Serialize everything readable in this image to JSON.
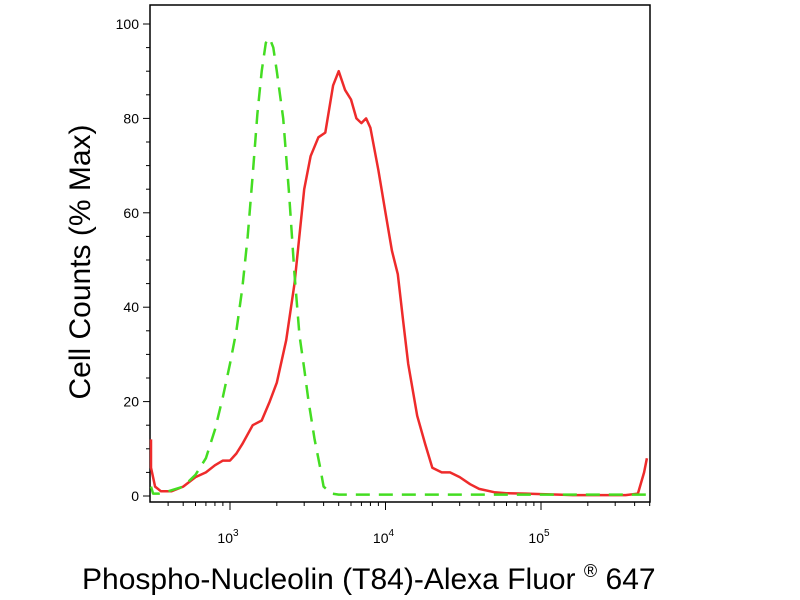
{
  "chart_data": {
    "type": "line",
    "title": "",
    "xlabel": "Phospho-Nucleolin (T84)-Alexa Fluor",
    "xlabel_superscript": "®",
    "xlabel_suffix": " 647",
    "ylabel": "Cell Counts (% Max)",
    "x_scale": "log",
    "xlim": [
      200,
      500000
    ],
    "ylim": [
      0,
      100
    ],
    "x_ticks": [
      {
        "base": "10",
        "exp": "3",
        "value": 1000
      },
      {
        "base": "10",
        "exp": "4",
        "value": 10000
      },
      {
        "base": "10",
        "exp": "5",
        "value": 100000
      }
    ],
    "y_ticks": [
      {
        "label": "0",
        "value": 0
      },
      {
        "label": "20",
        "value": 20
      },
      {
        "label": "40",
        "value": 40
      },
      {
        "label": "60",
        "value": 60
      },
      {
        "label": "80",
        "value": 80
      },
      {
        "label": "100",
        "value": 100
      }
    ],
    "grid": false,
    "series": [
      {
        "color": "#ee2b2b",
        "dash": "solid",
        "x": [
          300,
          310,
          330,
          360,
          420,
          500,
          600,
          700,
          800,
          900,
          1000,
          1100,
          1200,
          1400,
          1600,
          1800,
          2000,
          2300,
          2600,
          3000,
          3300,
          3700,
          4100,
          4600,
          5000,
          5500,
          6000,
          6500,
          7000,
          7500,
          8000,
          9000,
          10000,
          11000,
          12000,
          13000,
          14000,
          16000,
          18000,
          20000,
          23000,
          26000,
          30000,
          35000,
          40000,
          50000,
          60000,
          80000,
          100000,
          130000,
          160000,
          200000,
          280000,
          350000,
          420000,
          460000,
          480000
        ],
        "y": [
          12,
          6,
          2,
          1,
          1,
          2,
          4,
          5,
          6.5,
          7.5,
          7.5,
          9,
          11,
          15,
          16,
          20,
          24,
          33,
          45,
          65,
          72,
          76,
          77,
          87,
          90,
          86,
          84,
          80,
          79,
          80,
          78,
          69,
          60,
          52,
          47,
          37,
          28,
          17,
          11,
          6,
          5,
          5,
          4,
          2.5,
          1.5,
          0.8,
          0.6,
          0.5,
          0.4,
          0.3,
          0.2,
          0.2,
          0.2,
          0.2,
          0.5,
          5,
          8
        ]
      },
      {
        "color": "#44dd22",
        "dash": "dashed",
        "x": [
          300,
          320,
          350,
          400,
          500,
          600,
          700,
          800,
          900,
          1000,
          1100,
          1200,
          1300,
          1400,
          1500,
          1600,
          1700,
          1800,
          1900,
          2000,
          2200,
          2400,
          2600,
          2800,
          3000,
          3200,
          3500,
          3800,
          4000,
          4500,
          5000,
          6000,
          8000,
          10000,
          20000,
          40000,
          100000,
          200000,
          400000,
          480000
        ],
        "y": [
          2,
          0.5,
          0.5,
          1,
          2,
          4.5,
          8,
          14,
          21,
          28,
          35,
          44,
          55,
          68,
          81,
          90,
          96,
          97,
          95,
          90,
          80,
          64,
          47,
          34,
          27,
          20,
          12,
          6,
          2,
          0.5,
          0.3,
          0.3,
          0.3,
          0.3,
          0.3,
          0.3,
          0.3,
          0.3,
          0.3,
          0.3
        ]
      }
    ]
  }
}
